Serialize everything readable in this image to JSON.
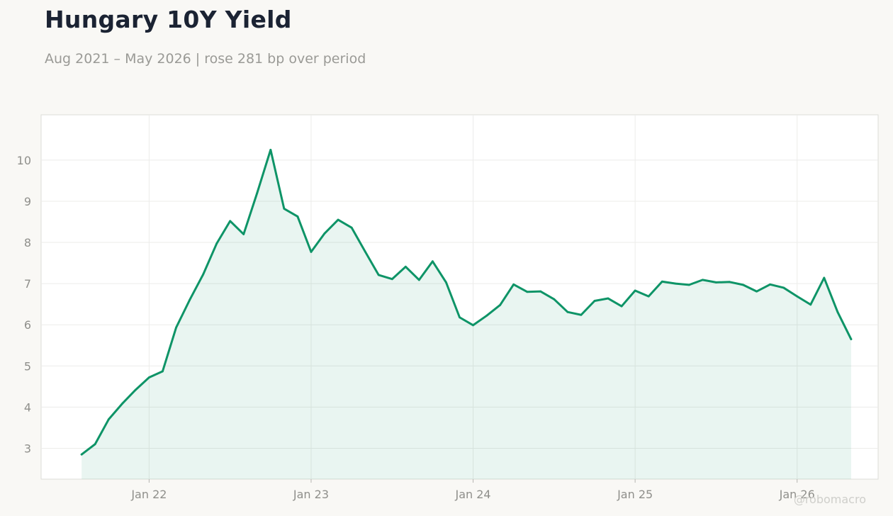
{
  "title": "Hungary 10Y Yield",
  "subtitle": "Aug 2021 – May 2026 | rose 281 bp over period",
  "watermark": "@robomacro",
  "colors": {
    "line": "#0e9467",
    "fill": "#0e9467",
    "background": "#f9f8f5",
    "plot_bg": "#ffffff"
  },
  "chart_data": {
    "type": "area",
    "x_format": "YYYY-MM",
    "x": [
      "2021-08",
      "2021-09",
      "2021-10",
      "2021-11",
      "2021-12",
      "2022-01",
      "2022-02",
      "2022-03",
      "2022-04",
      "2022-05",
      "2022-06",
      "2022-07",
      "2022-08",
      "2022-09",
      "2022-10",
      "2022-11",
      "2022-12",
      "2023-01",
      "2023-02",
      "2023-03",
      "2023-04",
      "2023-05",
      "2023-06",
      "2023-07",
      "2023-08",
      "2023-09",
      "2023-10",
      "2023-11",
      "2023-12",
      "2024-01",
      "2024-02",
      "2024-03",
      "2024-04",
      "2024-05",
      "2024-06",
      "2024-07",
      "2024-08",
      "2024-09",
      "2024-10",
      "2024-11",
      "2024-12",
      "2025-01",
      "2025-02",
      "2025-03",
      "2025-04",
      "2025-05",
      "2025-06",
      "2025-07",
      "2025-08",
      "2025-09",
      "2025-10",
      "2025-11",
      "2025-12",
      "2026-01",
      "2026-02",
      "2026-03",
      "2026-04",
      "2026-05"
    ],
    "series": [
      {
        "values": [
          2.85,
          3.1,
          3.7,
          4.08,
          4.42,
          4.72,
          4.87,
          5.93,
          6.6,
          7.22,
          7.97,
          8.52,
          8.2,
          9.2,
          10.25,
          8.82,
          8.63,
          7.77,
          8.22,
          8.55,
          8.36,
          7.78,
          7.21,
          7.11,
          7.41,
          7.09,
          7.54,
          7.03,
          6.18,
          5.99,
          6.22,
          6.48,
          6.98,
          6.8,
          6.81,
          6.62,
          6.31,
          6.24,
          6.58,
          6.64,
          6.45,
          6.83,
          6.69,
          7.05,
          7.0,
          6.97,
          7.09,
          7.03,
          7.04,
          6.97,
          6.81,
          6.98,
          6.9,
          6.69,
          6.49,
          7.14,
          6.31,
          5.65
        ]
      }
    ],
    "xticks": [
      {
        "date": "2022-01",
        "label": "Jan 22"
      },
      {
        "date": "2023-01",
        "label": "Jan 23"
      },
      {
        "date": "2024-01",
        "label": "Jan 24"
      },
      {
        "date": "2025-01",
        "label": "Jan 25"
      },
      {
        "date": "2026-01",
        "label": "Jan 26"
      }
    ],
    "yticks": [
      3,
      4,
      5,
      6,
      7,
      8,
      9,
      10
    ],
    "xlim": [
      "2021-05",
      "2026-07"
    ],
    "ylim": [
      2.25,
      11.1
    ],
    "grid": true,
    "legend": "none"
  }
}
